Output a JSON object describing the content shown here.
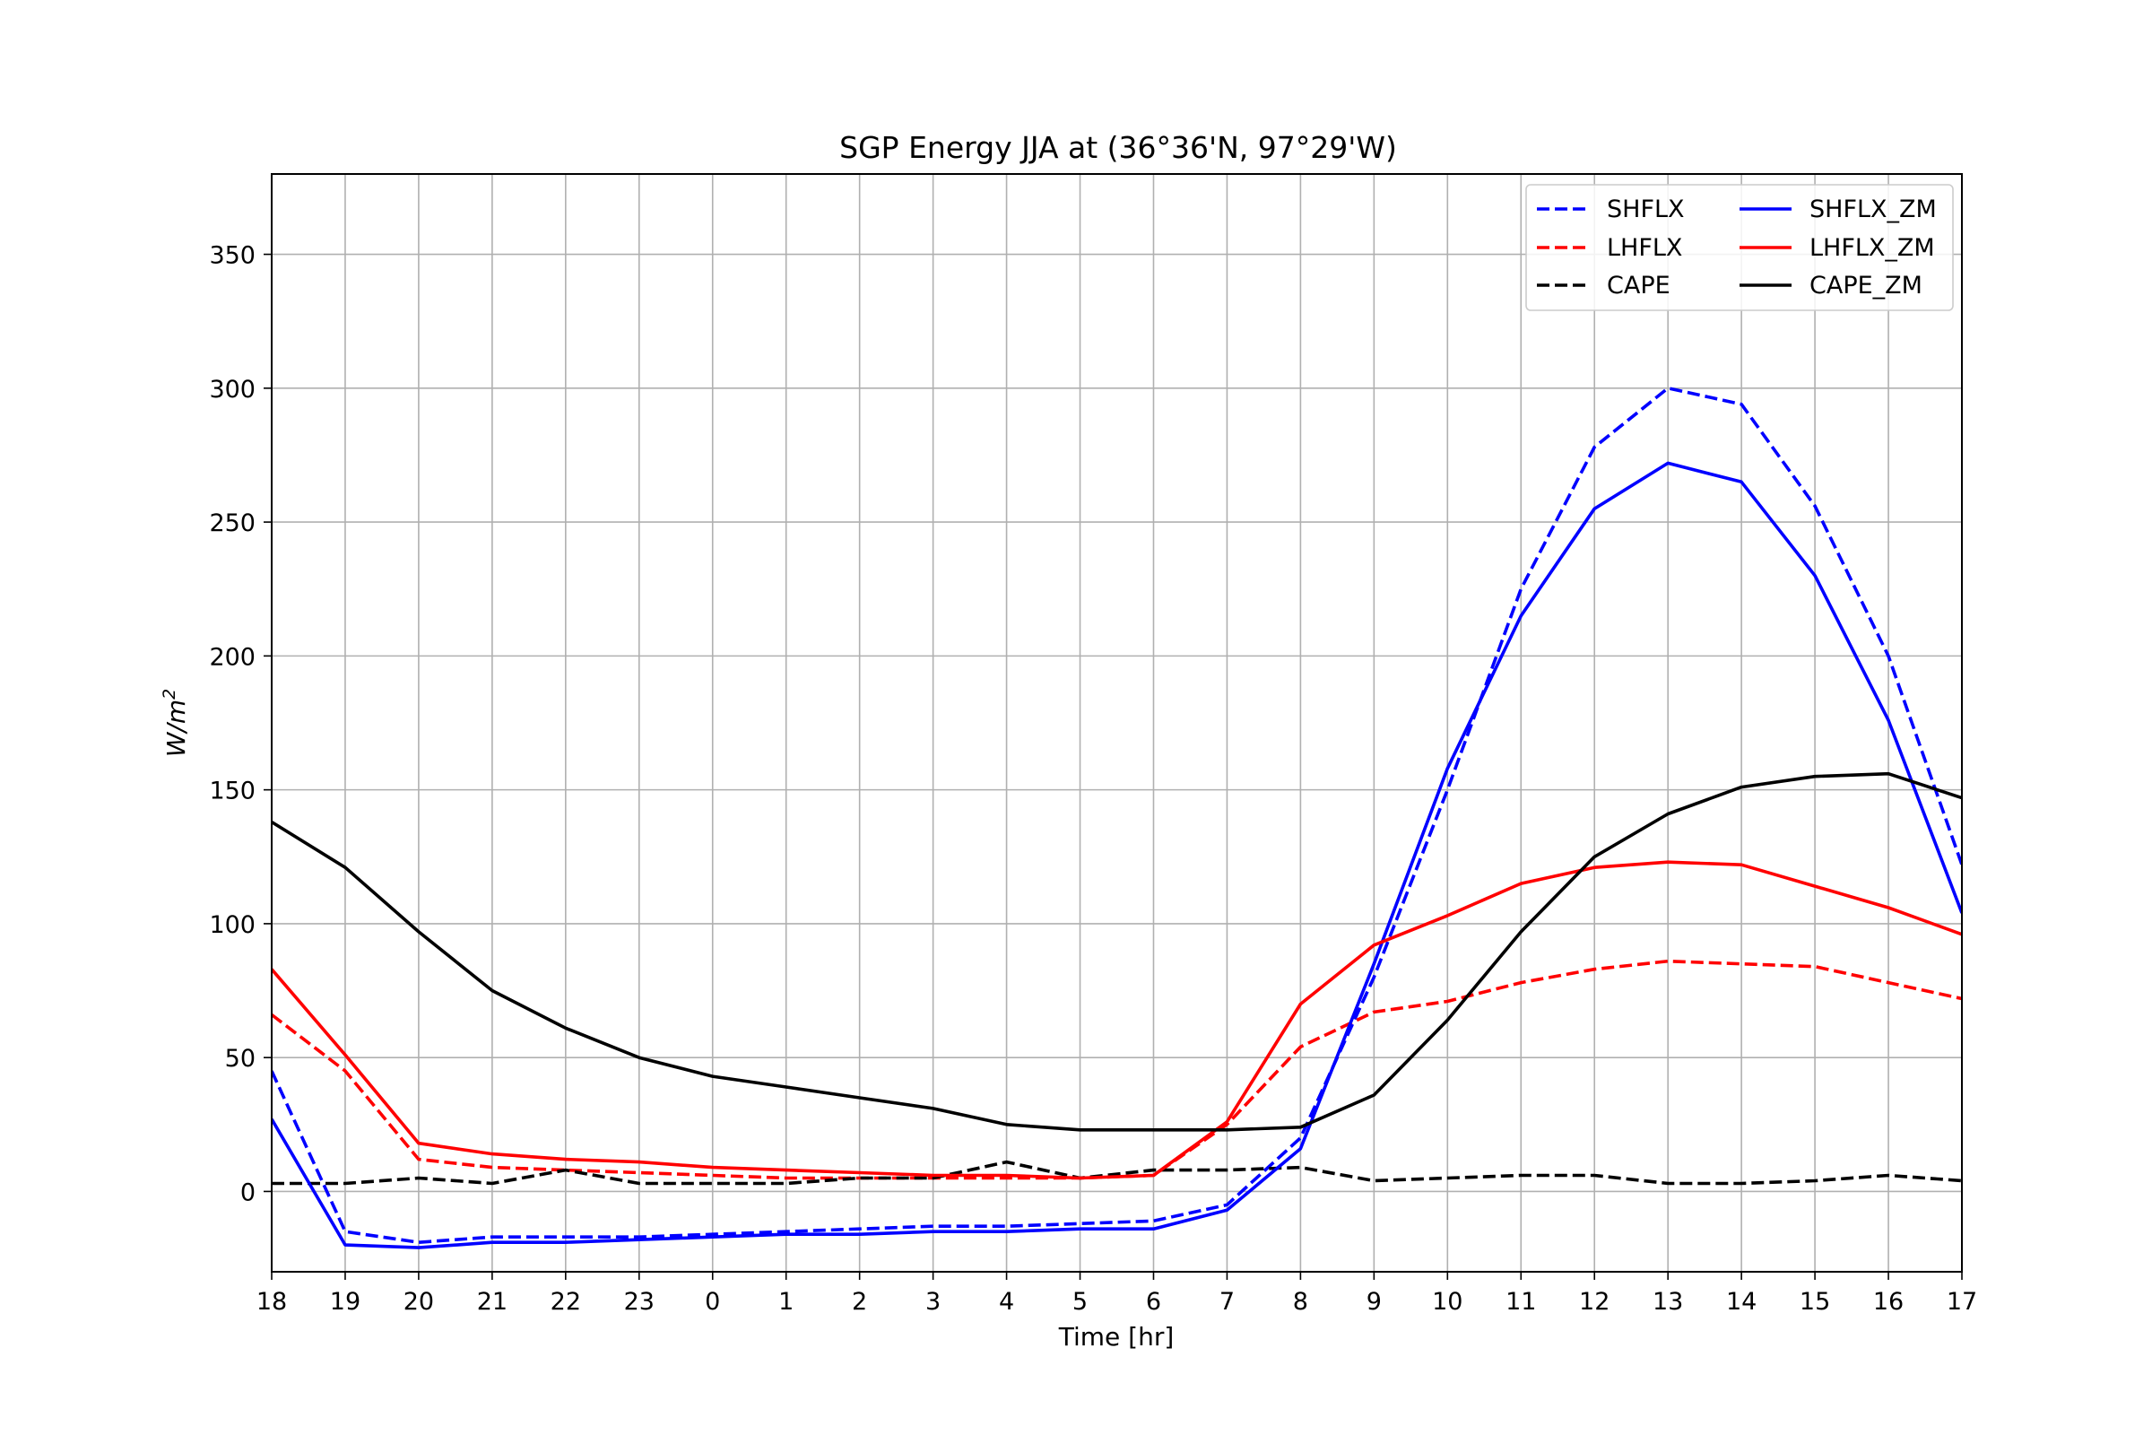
{
  "chart_data": {
    "type": "line",
    "title": "SGP Energy JJA at (36°36'N, 97°29'W)",
    "xlabel": "Time [hr]",
    "ylabel_main": "W/m",
    "ylabel_sup": "2",
    "categories": [
      "18",
      "19",
      "20",
      "21",
      "22",
      "23",
      "0",
      "1",
      "2",
      "3",
      "4",
      "5",
      "6",
      "7",
      "8",
      "9",
      "10",
      "11",
      "12",
      "13",
      "14",
      "15",
      "16",
      "17"
    ],
    "ylim": [
      -30,
      380
    ],
    "yticks": [
      0,
      50,
      100,
      150,
      200,
      250,
      300,
      350
    ],
    "grid": true,
    "legend": {
      "placement": "top-right",
      "columns": 2
    },
    "series": [
      {
        "name": "SHFLX",
        "color": "#0000ff",
        "dashed": true,
        "values": [
          45,
          -15,
          -19,
          -17,
          -17,
          -17,
          -16,
          -15,
          -14,
          -13,
          -13,
          -12,
          -11,
          -5,
          20,
          80,
          150,
          225,
          278,
          300,
          294,
          256,
          200,
          122
        ]
      },
      {
        "name": "LHFLX",
        "color": "#ff0000",
        "dashed": true,
        "values": [
          66,
          45,
          12,
          9,
          8,
          7,
          6,
          5,
          5,
          5,
          5,
          5,
          6,
          25,
          54,
          67,
          71,
          78,
          83,
          86,
          85,
          84,
          78,
          72
        ]
      },
      {
        "name": "CAPE",
        "color": "#000000",
        "dashed": true,
        "values": [
          3,
          3,
          5,
          3,
          8,
          3,
          3,
          3,
          5,
          5,
          11,
          5,
          8,
          8,
          9,
          4,
          5,
          6,
          6,
          3,
          3,
          4,
          6,
          4
        ]
      },
      {
        "name": "SHFLX_ZM",
        "color": "#0000ff",
        "dashed": false,
        "values": [
          27,
          -20,
          -21,
          -19,
          -19,
          -18,
          -17,
          -16,
          -16,
          -15,
          -15,
          -14,
          -14,
          -7,
          16,
          85,
          158,
          215,
          255,
          272,
          265,
          230,
          176,
          104
        ]
      },
      {
        "name": "LHFLX_ZM",
        "color": "#ff0000",
        "dashed": false,
        "values": [
          83,
          51,
          18,
          14,
          12,
          11,
          9,
          8,
          7,
          6,
          6,
          5,
          6,
          26,
          70,
          92,
          103,
          115,
          121,
          123,
          122,
          114,
          106,
          96
        ]
      },
      {
        "name": "CAPE_ZM",
        "color": "#000000",
        "dashed": false,
        "values": [
          138,
          121,
          97,
          75,
          61,
          50,
          43,
          39,
          35,
          31,
          25,
          23,
          23,
          23,
          24,
          36,
          64,
          97,
          125,
          141,
          151,
          155,
          156,
          147
        ]
      }
    ]
  }
}
